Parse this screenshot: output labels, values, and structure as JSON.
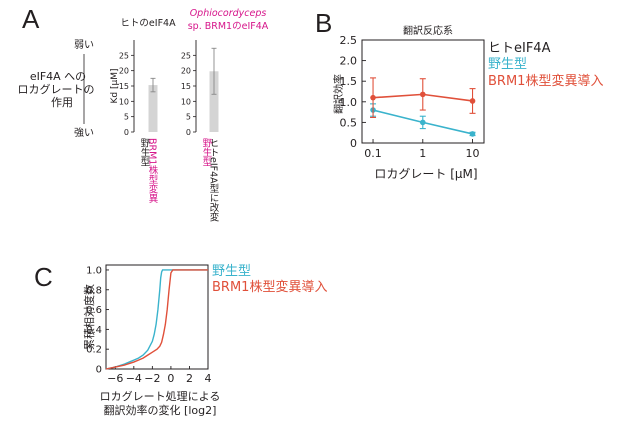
{
  "colors": {
    "wild": "#3ab3cc",
    "mutant": "#e0503a",
    "human": "#231f20",
    "magenta": "#d6158a",
    "bar": "#d4d4d4",
    "axis": "#231f20"
  },
  "panels": {
    "a": "A",
    "b": "B",
    "c": "C"
  },
  "chart_data": [
    {
      "panel": "A",
      "type": "bar",
      "title_left": "ヒトのeIF4A",
      "title_right_1": "Ophiocordyceps",
      "title_right_2": "sp. BRM1のeIF4A",
      "ylabel": "Kd [μM]",
      "ylim": [
        0,
        30
      ],
      "yticks": [
        0,
        5,
        10,
        15,
        20,
        25
      ],
      "weak_label": "弱い",
      "strong_label": "強い",
      "side_label": [
        "eIF4A への",
        "ロカグレートの",
        "作用"
      ],
      "groups": [
        {
          "name": "human",
          "bars": [
            {
              "label": "野生型",
              "value": null
            },
            {
              "label": "BRM1株型変異",
              "value": 15.3,
              "err": 2.2
            }
          ]
        },
        {
          "name": "ophio",
          "bars": [
            {
              "label": "野生型",
              "value": null
            },
            {
              "label": "ヒトeIF4A型に改変",
              "value": 19.8,
              "err": 7.5
            }
          ]
        }
      ]
    },
    {
      "panel": "B",
      "type": "line",
      "title": "翻訳反応系",
      "xlabel": "ロカグレート [μM]",
      "ylabel": "翻訳効率",
      "xscale": "log",
      "xlim": [
        0.06,
        17
      ],
      "ylim": [
        0,
        2.5
      ],
      "xticks": [
        0.1,
        1,
        10
      ],
      "xtick_labels": [
        "0.1",
        "1",
        "10"
      ],
      "yticks": [
        0,
        0.5,
        1.0,
        1.5,
        2.0,
        2.5
      ],
      "ytick_labels": [
        "0",
        "0.5",
        "1.0",
        "1.5",
        "2.0",
        "2.5"
      ],
      "legend_title": "ヒトeIF4A",
      "series": [
        {
          "name": "野生型",
          "color": "#3ab3cc",
          "x": [
            0.1,
            1,
            10
          ],
          "y": [
            0.8,
            0.5,
            0.22
          ],
          "err": [
            0.15,
            0.15,
            0.04
          ]
        },
        {
          "name": "BRM1株型変異導入",
          "color": "#e0503a",
          "x": [
            0.1,
            1,
            10
          ],
          "y": [
            1.1,
            1.18,
            1.02
          ],
          "err": [
            0.48,
            0.38,
            0.3
          ]
        }
      ]
    },
    {
      "panel": "C",
      "type": "line",
      "xlabel_1": "ロカグレート処理による",
      "xlabel_2": "翻訳効率の変化 [log2]",
      "ylabel": "累積相対度数",
      "xlim": [
        -7,
        4
      ],
      "ylim": [
        0,
        1.05
      ],
      "xticks": [
        -6,
        -4,
        -2,
        0,
        2,
        4
      ],
      "xtick_labels": [
        "−6",
        "−4",
        "−2",
        "0",
        "2",
        "4"
      ],
      "yticks": [
        0,
        0.2,
        0.4,
        0.6,
        0.8,
        1.0
      ],
      "ytick_labels": [
        "0",
        "0.2",
        "0.4",
        "0.6",
        "0.8",
        "1.0"
      ],
      "series": [
        {
          "name": "野生型",
          "color": "#3ab3cc",
          "x": [
            -7,
            -6,
            -5,
            -4.5,
            -4,
            -3.5,
            -3,
            -2.5,
            -2,
            -1.8,
            -1.6,
            -1.4,
            -1.2,
            -1.1,
            -1.0,
            -0.9,
            -0.8,
            4
          ],
          "y": [
            0,
            0.02,
            0.05,
            0.07,
            0.09,
            0.11,
            0.14,
            0.19,
            0.28,
            0.35,
            0.45,
            0.6,
            0.8,
            0.92,
            0.98,
            1.0,
            1.0,
            1.0
          ]
        },
        {
          "name": "BRM1株型変異導入",
          "color": "#e0503a",
          "x": [
            -7,
            -6,
            -5,
            -4,
            -3.5,
            -3,
            -2.5,
            -2,
            -1.5,
            -1.2,
            -1.0,
            -0.8,
            -0.6,
            -0.4,
            -0.2,
            0.0,
            0.2,
            4
          ],
          "y": [
            0,
            0.02,
            0.04,
            0.07,
            0.09,
            0.11,
            0.14,
            0.17,
            0.2,
            0.23,
            0.27,
            0.35,
            0.45,
            0.6,
            0.8,
            0.97,
            1.0,
            1.0
          ]
        }
      ]
    }
  ]
}
